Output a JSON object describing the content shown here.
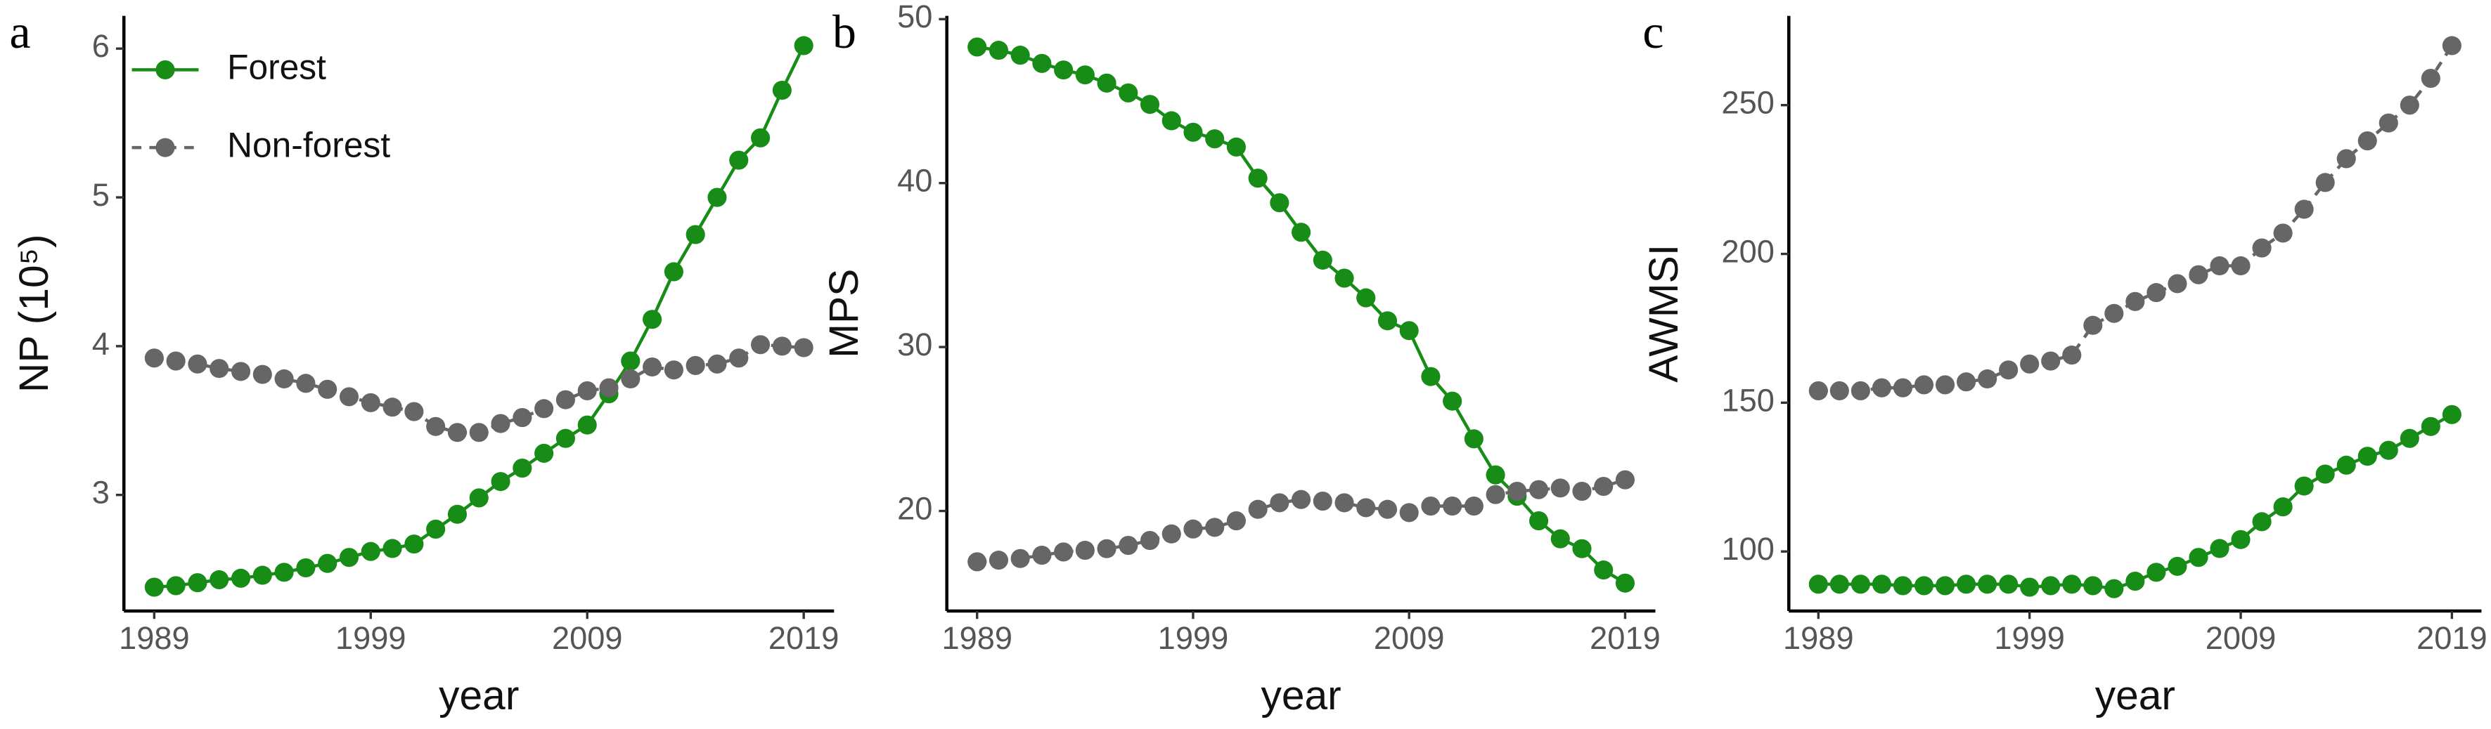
{
  "chart_data": [
    {
      "type": "line",
      "label": "a",
      "x_label": "year",
      "y_label": "NP (10⁵)",
      "x": [
        1989,
        1990,
        1991,
        1992,
        1993,
        1994,
        1995,
        1996,
        1997,
        1998,
        1999,
        2000,
        2001,
        2002,
        2003,
        2004,
        2005,
        2006,
        2007,
        2008,
        2009,
        2010,
        2011,
        2012,
        2013,
        2014,
        2015,
        2016,
        2017,
        2018,
        2019
      ],
      "xlim": [
        1987.6,
        2020.4
      ],
      "xticks": [
        1989,
        1999,
        2009,
        2019
      ],
      "ylim": [
        2.22,
        6.22
      ],
      "yticks": [
        3,
        4,
        5,
        6
      ],
      "legend": "upper left",
      "series": [
        {
          "name": "Forest",
          "color": "#178c17",
          "linestyle": "solid",
          "values": [
            2.38,
            2.39,
            2.41,
            2.43,
            2.44,
            2.46,
            2.48,
            2.51,
            2.54,
            2.58,
            2.62,
            2.64,
            2.67,
            2.77,
            2.87,
            2.98,
            3.09,
            3.18,
            3.28,
            3.38,
            3.47,
            3.68,
            3.9,
            4.18,
            4.5,
            4.75,
            5.0,
            5.25,
            5.4,
            5.72,
            6.02
          ]
        },
        {
          "name": "Non-forest",
          "color": "#666666",
          "linestyle": "dashed",
          "values": [
            3.92,
            3.9,
            3.88,
            3.85,
            3.83,
            3.81,
            3.78,
            3.75,
            3.71,
            3.66,
            3.62,
            3.59,
            3.56,
            3.46,
            3.42,
            3.42,
            3.48,
            3.52,
            3.58,
            3.64,
            3.7,
            3.72,
            3.78,
            3.86,
            3.84,
            3.87,
            3.88,
            3.92,
            4.01,
            4.0,
            3.99
          ]
        }
      ]
    },
    {
      "type": "line",
      "label": "b",
      "x_label": "year",
      "y_label": "MPS",
      "x": [
        1989,
        1990,
        1991,
        1992,
        1993,
        1994,
        1995,
        1996,
        1997,
        1998,
        1999,
        2000,
        2001,
        2002,
        2003,
        2004,
        2005,
        2006,
        2007,
        2008,
        2009,
        2010,
        2011,
        2012,
        2013,
        2014,
        2015,
        2016,
        2017,
        2018,
        2019
      ],
      "xlim": [
        1987.6,
        2020.4
      ],
      "xticks": [
        1989,
        1999,
        2009,
        2019
      ],
      "ylim": [
        13.9,
        50.2
      ],
      "yticks": [
        20,
        30,
        40,
        50
      ],
      "series": [
        {
          "color": "#178c17",
          "linestyle": "solid",
          "values": [
            48.3,
            48.1,
            47.8,
            47.3,
            46.9,
            46.6,
            46.1,
            45.5,
            44.8,
            43.8,
            43.1,
            42.7,
            42.2,
            40.3,
            38.8,
            37.0,
            35.3,
            34.2,
            33.0,
            31.6,
            31.0,
            28.2,
            26.7,
            24.4,
            22.2,
            20.9,
            19.4,
            18.3,
            17.7,
            16.4,
            15.6
          ]
        },
        {
          "color": "#666666",
          "linestyle": "dashed",
          "values": [
            16.9,
            17.0,
            17.1,
            17.3,
            17.5,
            17.6,
            17.7,
            17.9,
            18.2,
            18.6,
            18.9,
            19.0,
            19.4,
            20.1,
            20.5,
            20.7,
            20.6,
            20.5,
            20.2,
            20.1,
            19.9,
            20.3,
            20.3,
            20.3,
            21.0,
            21.2,
            21.3,
            21.4,
            21.2,
            21.5,
            21.9
          ]
        }
      ]
    },
    {
      "type": "line",
      "label": "c",
      "x_label": "year",
      "y_label": "AWMSI",
      "x": [
        1989,
        1990,
        1991,
        1992,
        1993,
        1994,
        1995,
        1996,
        1997,
        1998,
        1999,
        2000,
        2001,
        2002,
        2003,
        2004,
        2005,
        2006,
        2007,
        2008,
        2009,
        2010,
        2011,
        2012,
        2013,
        2014,
        2015,
        2016,
        2017,
        2018,
        2019
      ],
      "xlim": [
        1987.6,
        2020.4
      ],
      "xticks": [
        1989,
        1999,
        2009,
        2019
      ],
      "ylim": [
        80,
        280
      ],
      "yticks": [
        100,
        150,
        200,
        250
      ],
      "series": [
        {
          "color": "#178c17",
          "linestyle": "solid",
          "values": [
            89,
            89,
            89,
            89,
            88.5,
            88.5,
            88.5,
            89,
            89,
            89,
            88,
            88.5,
            89,
            88.5,
            87.5,
            90,
            93,
            95,
            98,
            101,
            104,
            110,
            115,
            122,
            126,
            129,
            132,
            134,
            138,
            142,
            146
          ]
        },
        {
          "color": "#666666",
          "linestyle": "dashed",
          "values": [
            154,
            154,
            154,
            155,
            155,
            156,
            156,
            157,
            158,
            161,
            163,
            164,
            166,
            176,
            180,
            184,
            187,
            190,
            193,
            196,
            196,
            202,
            207,
            215,
            224,
            232,
            238,
            244,
            250,
            259,
            270
          ]
        }
      ]
    }
  ]
}
